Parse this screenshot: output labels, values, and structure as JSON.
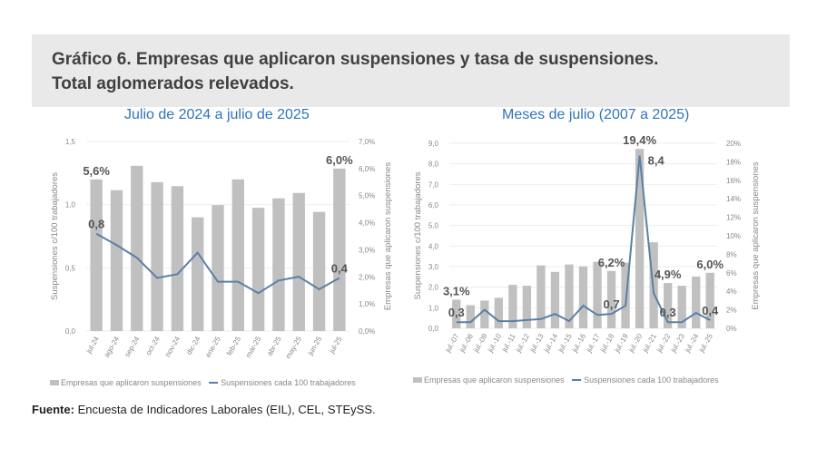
{
  "header": {
    "title_line1": "Gráfico 6. Empresas que aplicaron suspensiones y tasa de suspensiones.",
    "title_line2": "Total aglomerados relevados."
  },
  "source": {
    "label": "Fuente:",
    "text": " Encuesta de Indicadores Laborales (EIL), CEL, STEySS."
  },
  "colors": {
    "bars": "#c0c0c0",
    "line": "#5b7fa6",
    "subtitle": "#2e75b6"
  },
  "chart_data": [
    {
      "type": "bar+line",
      "title": "Julio de 2024 a julio de 2025",
      "categories": [
        "jul-24",
        "ago-24",
        "sep-24",
        "oct-24",
        "nov-24",
        "dic-24",
        "ene-25",
        "feb-25",
        "mar-25",
        "abr-25",
        "may-25",
        "jun-25",
        "jul-25"
      ],
      "ylabel_left": "Suspensiones c/100 trabajadores",
      "ylabel_right": "Empresas que aplicaron suspensiones",
      "ylim_left": [
        0,
        1.5
      ],
      "yticks_left": [
        "0,0",
        "0,5",
        "1,0",
        "1,5"
      ],
      "ylim_right": [
        0,
        7
      ],
      "yticks_right": [
        "0,0%",
        "1,0%",
        "2,0%",
        "3,0%",
        "4,0%",
        "5,0%",
        "6,0%",
        "7,0%"
      ],
      "series": [
        {
          "name": "Empresas que aplicaron suspensiones",
          "type": "bar",
          "axis": "right",
          "values": [
            5.6,
            5.2,
            6.1,
            5.5,
            5.35,
            4.2,
            4.65,
            5.6,
            4.55,
            4.9,
            5.1,
            4.4,
            6.0
          ]
        },
        {
          "name": "Suspensiones cada 100 trabajadores",
          "type": "line",
          "axis": "left",
          "values": [
            0.77,
            0.68,
            0.58,
            0.42,
            0.45,
            0.62,
            0.39,
            0.39,
            0.3,
            0.4,
            0.43,
            0.33,
            0.42
          ]
        }
      ],
      "annotations": [
        {
          "text": "5,6%",
          "series": 0,
          "index": 0
        },
        {
          "text": "6,0%",
          "series": 0,
          "index": 12
        },
        {
          "text": "0,8",
          "series": 1,
          "index": 0
        },
        {
          "text": "0,4",
          "series": 1,
          "index": 12
        }
      ],
      "legend": "bottom",
      "grid": true
    },
    {
      "type": "bar+line",
      "title": "Meses de julio (2007 a 2025)",
      "categories": [
        "jul.-07",
        "jul.-08",
        "jul.-09",
        "jul.-10",
        "jul.-11",
        "jul.-12",
        "jul.-13",
        "jul.-14",
        "jul.-15",
        "jul.-16",
        "jul.-17",
        "jul.-18",
        "jul.-19",
        "jul.-20",
        "jul.-21",
        "jul.-22",
        "jul.-23",
        "jul.-24",
        "jul.-25"
      ],
      "ylabel_left": "Suspensiones c/100 trabajadores",
      "ylabel_right": "Empresas que aplicaron suspensiones",
      "ylim_left": [
        0,
        9
      ],
      "yticks_left": [
        "0,0",
        "1,0",
        "2,0",
        "3,0",
        "4,0",
        "5,0",
        "6,0",
        "7,0",
        "8,0",
        "9,0"
      ],
      "ylim_right": [
        0,
        20
      ],
      "yticks_right": [
        "0%",
        "2%",
        "4%",
        "6%",
        "8%",
        "10%",
        "12%",
        "14%",
        "16%",
        "18%",
        "20%"
      ],
      "series": [
        {
          "name": "Empresas que aplicaron suspensiones",
          "type": "bar",
          "axis": "right",
          "values": [
            3.1,
            2.5,
            3.0,
            3.3,
            4.7,
            4.6,
            6.8,
            6.1,
            6.9,
            6.7,
            7.2,
            6.2,
            7.1,
            19.4,
            9.3,
            4.9,
            4.6,
            5.6,
            6.0
          ]
        },
        {
          "name": "Suspensiones cada 100 trabajadores",
          "type": "line",
          "axis": "left",
          "values": [
            0.3,
            0.3,
            0.9,
            0.35,
            0.35,
            0.4,
            0.45,
            0.7,
            0.35,
            1.1,
            0.65,
            0.7,
            1.1,
            8.4,
            1.7,
            0.3,
            0.3,
            0.75,
            0.4
          ]
        }
      ],
      "annotations": [
        {
          "text": "3,1%",
          "series": 0,
          "index": 0
        },
        {
          "text": "6,2%",
          "series": 0,
          "index": 11
        },
        {
          "text": "19,4%",
          "series": 0,
          "index": 13
        },
        {
          "text": "4,9%",
          "series": 0,
          "index": 15
        },
        {
          "text": "6,0%",
          "series": 0,
          "index": 18
        },
        {
          "text": "0,3",
          "series": 1,
          "index": 0
        },
        {
          "text": "0,7",
          "series": 1,
          "index": 11
        },
        {
          "text": "8,4",
          "series": 1,
          "index": 13
        },
        {
          "text": "0,3",
          "series": 1,
          "index": 15
        },
        {
          "text": "0,4",
          "series": 1,
          "index": 18
        }
      ],
      "legend": "bottom",
      "grid": true
    }
  ]
}
